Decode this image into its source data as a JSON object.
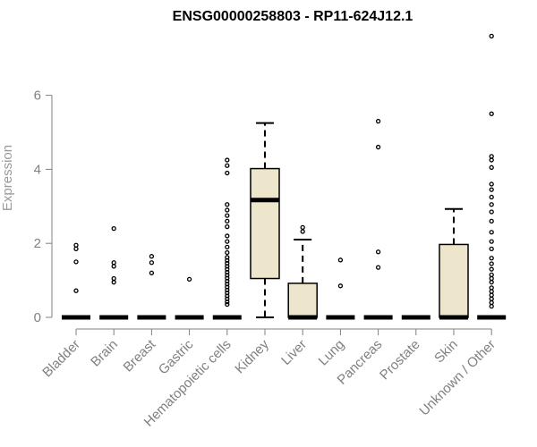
{
  "chart_data": {
    "type": "boxplot",
    "title": "ENSG00000258803 - RP11-624J12.1",
    "ylabel": "Expression",
    "xlabel": "",
    "ylim": [
      0,
      7.8
    ],
    "yticks": [
      0,
      2,
      4,
      6
    ],
    "grid": false,
    "legend": "none",
    "colors": {
      "box_fill": "#ede5cc",
      "box_stroke": "#000000",
      "axis": "#808080"
    },
    "categories": [
      "Bladder",
      "Brain",
      "Breast",
      "Gastric",
      "Hematopoietic cells",
      "Kidney",
      "Liver",
      "Lung",
      "Pancreas",
      "Prostate",
      "Skin",
      "Unknown / Other"
    ],
    "boxes": [
      {
        "category": "Bladder",
        "q1": 0,
        "median": 0,
        "q3": 0,
        "whisker_low": 0,
        "whisker_high": 0,
        "outliers": [
          0.72,
          1.5,
          1.85,
          1.95
        ]
      },
      {
        "category": "Brain",
        "q1": 0,
        "median": 0,
        "q3": 0,
        "whisker_low": 0,
        "whisker_high": 0,
        "outliers": [
          0.95,
          1.05,
          1.38,
          1.48,
          2.4
        ]
      },
      {
        "category": "Breast",
        "q1": 0,
        "median": 0,
        "q3": 0,
        "whisker_low": 0,
        "whisker_high": 0,
        "outliers": [
          1.2,
          1.48,
          1.65
        ]
      },
      {
        "category": "Gastric",
        "q1": 0,
        "median": 0,
        "q3": 0,
        "whisker_low": 0,
        "whisker_high": 0,
        "outliers": [
          1.03
        ]
      },
      {
        "category": "Hematopoietic cells",
        "q1": 0,
        "median": 0,
        "q3": 0,
        "whisker_low": 0,
        "whisker_high": 0,
        "outliers": [
          0.35,
          0.42,
          0.5,
          0.58,
          0.66,
          0.74,
          0.82,
          0.9,
          0.98,
          1.06,
          1.14,
          1.22,
          1.3,
          1.38,
          1.46,
          1.54,
          1.62,
          1.75,
          1.9,
          2.05,
          2.2,
          2.45,
          2.6,
          2.75,
          2.9,
          3.05,
          3.9,
          4.1,
          4.25
        ]
      },
      {
        "category": "Kidney",
        "q1": 1.05,
        "median": 3.17,
        "q3": 4.02,
        "whisker_low": 0,
        "whisker_high": 5.25,
        "outliers": []
      },
      {
        "category": "Liver",
        "q1": 0,
        "median": 0,
        "q3": 0.92,
        "whisker_low": 0,
        "whisker_high": 2.1,
        "outliers": [
          2.32,
          2.43
        ]
      },
      {
        "category": "Lung",
        "q1": 0,
        "median": 0,
        "q3": 0,
        "whisker_low": 0,
        "whisker_high": 0,
        "outliers": [
          0.85,
          1.55
        ]
      },
      {
        "category": "Pancreas",
        "q1": 0,
        "median": 0,
        "q3": 0,
        "whisker_low": 0,
        "whisker_high": 0,
        "outliers": [
          1.35,
          1.77,
          4.6,
          5.3
        ]
      },
      {
        "category": "Prostate",
        "q1": 0,
        "median": 0,
        "q3": 0,
        "whisker_low": 0,
        "whisker_high": 0,
        "outliers": []
      },
      {
        "category": "Skin",
        "q1": 0,
        "median": 0,
        "q3": 1.97,
        "whisker_low": 0,
        "whisker_high": 2.93,
        "outliers": []
      },
      {
        "category": "Unknown / Other",
        "q1": 0,
        "median": 0,
        "q3": 0,
        "whisker_low": 0,
        "whisker_high": 0,
        "outliers": [
          0.3,
          0.4,
          0.5,
          0.6,
          0.7,
          0.8,
          0.95,
          1.05,
          1.15,
          1.3,
          1.45,
          1.6,
          1.85,
          2.05,
          2.3,
          2.6,
          2.85,
          3.05,
          3.25,
          3.45,
          3.6,
          4.05,
          4.25,
          4.35,
          5.5,
          7.6
        ]
      }
    ]
  }
}
